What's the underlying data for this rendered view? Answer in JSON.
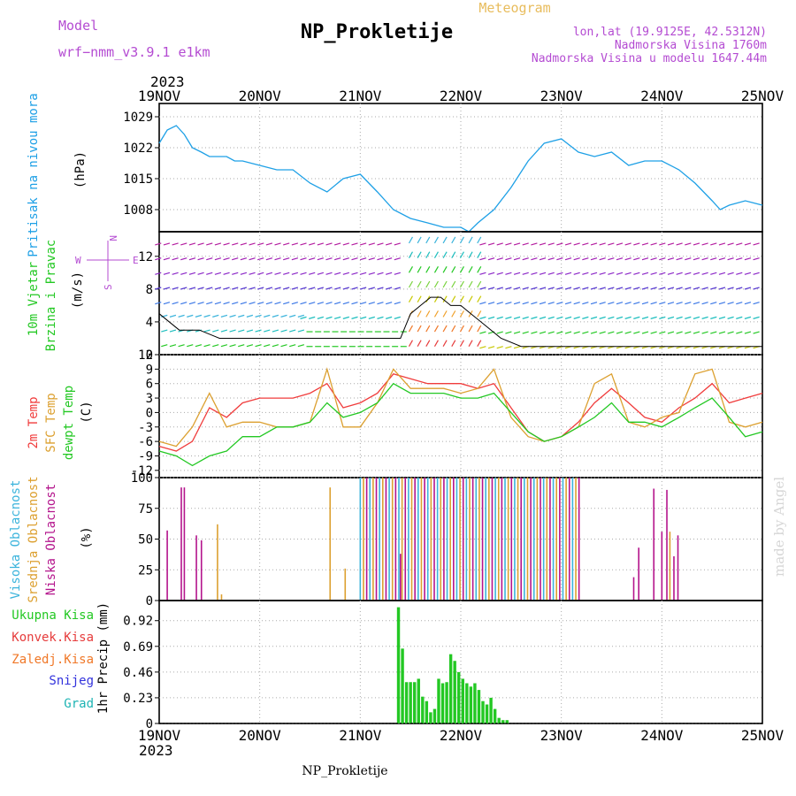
{
  "header": {
    "model_label": "Model",
    "model_name": "wrf−nmm_v3.9.1  e1km",
    "title": "NP_Prokletije",
    "meteogram_label": "Meteogram",
    "coords": "lon,lat (19.9125E, 42.5312N)",
    "altitude": "Nadmorska Visina 1760m",
    "model_altitude": "Nadmorska Visina u modelu 1647.44m",
    "bottom_title": "NP_Prokletije",
    "credit": "made by Angel"
  },
  "colors": {
    "pressure": "#1ea0e6",
    "temp2m": "#f03c3c",
    "sfc_temp": "#dca030",
    "dewpoint": "#23c823",
    "precip": "#23c823",
    "purple": "#b44bd2",
    "cloud_high": "#3cb4dc",
    "cloud_mid": "#dca030",
    "cloud_low": "#b4148c",
    "snow": "#3232dc",
    "grad": "#1eb4b4",
    "conv": "#e63c3c",
    "frz": "#f07828"
  },
  "x_axis": {
    "year": "2023",
    "ticks": [
      "19NOV",
      "20NOV",
      "21NOV",
      "22NOV",
      "23NOV",
      "24NOV",
      "25NOV"
    ]
  },
  "panels": {
    "pressure": {
      "label_main": "Pritisak na nivou mora",
      "unit": "(hPa)",
      "yticks": [
        "1008",
        "1015",
        "1022",
        "1029"
      ]
    },
    "wind": {
      "label_line1": "10m Vjetar",
      "label_line2": "Brzina i Pravac",
      "unit": "(m/s)",
      "compass_n": "N",
      "compass_s": "S",
      "compass_w": "W",
      "compass_e": "E",
      "yticks": [
        "0",
        "4",
        "8",
        "12"
      ]
    },
    "temp": {
      "label_2m": "2m Temp",
      "label_sfc": "SFC Temp",
      "label_dew": "dewpt Temp",
      "unit": "(C)",
      "yticks": [
        "-12",
        "-9",
        "-6",
        "-3",
        "0",
        "3",
        "6",
        "9",
        "12"
      ]
    },
    "cloud": {
      "label_high": "Visoka Oblacnost",
      "label_mid": "Srednja Oblacnost",
      "label_low": "Niska Oblacnost",
      "unit": "(%)",
      "yticks": [
        "0",
        "25",
        "50",
        "75",
        "100"
      ]
    },
    "precip": {
      "legend_total": "Ukupna Kisa",
      "legend_conv": "Konvek.Kisa",
      "legend_frz": "Zaledj.Kisa",
      "legend_snow": "Snijeg",
      "legend_grad": "Grad",
      "ylabel": "1hr Precip (mm)",
      "yticks": [
        "0",
        "0.23",
        "0.46",
        "0.69",
        "0.92"
      ]
    }
  },
  "chart_data": [
    {
      "type": "line",
      "name": "pressure",
      "ylim": [
        1003,
        1032
      ],
      "x_days": [
        0,
        0.08,
        0.17,
        0.25,
        0.33,
        0.42,
        0.5,
        0.58,
        0.67,
        0.75,
        0.83,
        1.0,
        1.17,
        1.33,
        1.5,
        1.67,
        1.83,
        2.0,
        2.17,
        2.33,
        2.5,
        2.67,
        2.83,
        3.0,
        3.08,
        3.17,
        3.33,
        3.5,
        3.67,
        3.83,
        4.0,
        4.17,
        4.33,
        4.5,
        4.67,
        4.83,
        5.0,
        5.17,
        5.33,
        5.5,
        5.58,
        5.67,
        5.83,
        6.0
      ],
      "values": [
        1023,
        1026,
        1027,
        1025,
        1022,
        1021,
        1020,
        1020,
        1020,
        1019,
        1019,
        1018,
        1017,
        1017,
        1014,
        1012,
        1015,
        1016,
        1012,
        1008,
        1006,
        1005,
        1004,
        1004,
        1003,
        1005,
        1008,
        1013,
        1019,
        1023,
        1024,
        1021,
        1020,
        1021,
        1018,
        1019,
        1019,
        1017,
        1014,
        1010,
        1008,
        1009,
        1010,
        1009
      ]
    },
    {
      "type": "line",
      "name": "wind",
      "ylim": [
        0,
        15
      ],
      "series": [
        {
          "x_days": [
            0,
            0.2,
            0.4,
            0.6,
            0.8,
            1.0,
            1.2,
            1.4,
            1.6,
            1.8,
            2.0,
            2.2,
            2.4,
            2.5,
            2.6,
            2.7,
            2.8,
            2.9,
            3.0,
            3.1,
            3.2,
            3.4,
            3.6,
            3.8,
            4.0,
            4.2,
            4.4,
            4.6,
            4.8,
            5.0,
            5.2,
            5.4,
            5.6,
            5.8,
            6.0
          ],
          "values": [
            5,
            3,
            3,
            2,
            2,
            2,
            2,
            2,
            2,
            2,
            2,
            2,
            2,
            5,
            6,
            7,
            7,
            6,
            6,
            5,
            4,
            2,
            1,
            1,
            1,
            1,
            1,
            1,
            1,
            1,
            1,
            1,
            1,
            1,
            1
          ]
        }
      ]
    },
    {
      "type": "line",
      "name": "temperature",
      "ylim": [
        -13.5,
        12
      ],
      "series": [
        {
          "x_days": [
            0,
            0.17,
            0.33,
            0.5,
            0.67,
            0.83,
            1.0,
            1.17,
            1.33,
            1.5,
            1.67,
            1.83,
            2.0,
            2.17,
            2.33,
            2.5,
            2.67,
            2.83,
            3.0,
            3.17,
            3.33,
            3.5,
            3.67,
            3.83,
            4.0,
            4.17,
            4.33,
            4.5,
            4.67,
            4.83,
            5.0,
            5.17,
            5.33,
            5.5,
            5.67,
            5.83,
            6.0
          ],
          "values": [
            -7,
            -8,
            -6,
            1,
            -1,
            2,
            3,
            3,
            3,
            4,
            6,
            1,
            2,
            4,
            8,
            7,
            6,
            6,
            6,
            5,
            6,
            1,
            -4,
            -6,
            -5,
            -2,
            2,
            5,
            2,
            -1,
            -2,
            1,
            3,
            6,
            2,
            3,
            4
          ]
        },
        {
          "x_days": [
            0,
            0.17,
            0.33,
            0.5,
            0.67,
            0.83,
            1.0,
            1.17,
            1.33,
            1.5,
            1.67,
            1.83,
            2.0,
            2.17,
            2.33,
            2.5,
            2.67,
            2.83,
            3.0,
            3.17,
            3.33,
            3.5,
            3.67,
            3.83,
            4.0,
            4.17,
            4.33,
            4.5,
            4.67,
            4.83,
            5.0,
            5.17,
            5.33,
            5.5,
            5.67,
            5.83,
            6.0
          ],
          "values": [
            -6,
            -7,
            -3,
            4,
            -3,
            -2,
            -2,
            -3,
            -3,
            -2,
            9,
            -3,
            -3,
            2,
            9,
            5,
            5,
            5,
            4,
            5,
            9,
            -1,
            -5,
            -6,
            -5,
            -3,
            6,
            8,
            -2,
            -3,
            -1,
            0,
            8,
            9,
            -2,
            -3,
            -2
          ]
        },
        {
          "x_days": [
            0,
            0.17,
            0.33,
            0.5,
            0.67,
            0.83,
            1.0,
            1.17,
            1.33,
            1.5,
            1.67,
            1.83,
            2.0,
            2.17,
            2.33,
            2.5,
            2.67,
            2.83,
            3.0,
            3.17,
            3.33,
            3.5,
            3.67,
            3.83,
            4.0,
            4.17,
            4.33,
            4.5,
            4.67,
            4.83,
            5.0,
            5.17,
            5.33,
            5.5,
            5.67,
            5.83,
            6.0
          ],
          "values": [
            -8,
            -9,
            -11,
            -9,
            -8,
            -5,
            -5,
            -3,
            -3,
            -2,
            2,
            -1,
            0,
            2,
            6,
            4,
            4,
            4,
            3,
            3,
            4,
            0,
            -4,
            -6,
            -5,
            -3,
            -1,
            2,
            -2,
            -2,
            -3,
            -1,
            1,
            3,
            -1,
            -5,
            -4
          ]
        }
      ]
    },
    {
      "type": "bar",
      "name": "cloud",
      "ylim": [
        0,
        100
      ],
      "low_bars_x_days": [
        0.08,
        0.22,
        0.25,
        0.37,
        0.42,
        2.4,
        4.72,
        4.77,
        4.92,
        5.0,
        5.05,
        5.12,
        5.16
      ],
      "low_bars_values": [
        57,
        92,
        92,
        53,
        49,
        38,
        19,
        43,
        91,
        56,
        90,
        36,
        53
      ],
      "mid_bars_x_days": [
        0.58,
        0.62,
        1.7,
        1.85,
        5.08
      ],
      "mid_bars_values": [
        62,
        5,
        92,
        26,
        56
      ],
      "overcast_interval_days": [
        2.0,
        4.2
      ],
      "overcast_value": 100
    },
    {
      "type": "bar",
      "name": "precip",
      "ylim": [
        0,
        1.1
      ],
      "x_days": [
        2.38,
        2.42,
        2.46,
        2.5,
        2.54,
        2.58,
        2.62,
        2.66,
        2.7,
        2.74,
        2.78,
        2.82,
        2.86,
        2.9,
        2.94,
        2.98,
        3.02,
        3.06,
        3.1,
        3.14,
        3.18,
        3.22,
        3.26,
        3.3,
        3.34,
        3.38,
        3.42,
        3.46
      ],
      "values": [
        1.04,
        0.67,
        0.37,
        0.37,
        0.37,
        0.4,
        0.24,
        0.2,
        0.1,
        0.13,
        0.4,
        0.36,
        0.37,
        0.62,
        0.56,
        0.46,
        0.4,
        0.36,
        0.33,
        0.36,
        0.3,
        0.2,
        0.17,
        0.23,
        0.13,
        0.05,
        0.03,
        0.03
      ]
    }
  ]
}
